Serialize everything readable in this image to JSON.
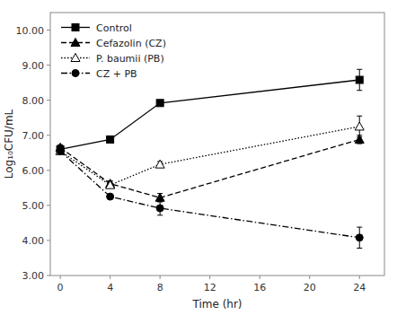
{
  "chart_data": {
    "type": "line",
    "x": [
      0,
      4,
      8,
      24
    ],
    "xlabel": "Time (hr)",
    "ylabel": "Log₁₀CFU/mL",
    "xlim": [
      -0.8,
      26
    ],
    "ylim": [
      3.0,
      10.5
    ],
    "xticks": [
      0,
      4,
      8,
      12,
      16,
      20,
      24
    ],
    "yticks": [
      {
        "value": 3.0,
        "label": "3.00"
      },
      {
        "value": 4.0,
        "label": "4.00"
      },
      {
        "value": 5.0,
        "label": "5.00"
      },
      {
        "value": 6.0,
        "label": "6.00"
      },
      {
        "value": 7.0,
        "label": "7.00"
      },
      {
        "value": 8.0,
        "label": "8.00"
      },
      {
        "value": 9.0,
        "label": "9.00"
      },
      {
        "value": 10.0,
        "label": "10.00"
      }
    ],
    "grid": false,
    "legend": "upper left",
    "series": [
      {
        "name": "Control",
        "color": "black",
        "marker": "square",
        "line_style": "solid",
        "values": [
          6.6,
          6.88,
          7.92,
          8.58
        ],
        "errors": [
          0.08,
          0.08,
          0.08,
          0.3
        ]
      },
      {
        "name": "Cefazolin (CZ)",
        "color": "black",
        "marker": "triangle",
        "line_style": "dashed",
        "values": [
          6.65,
          5.62,
          5.22,
          6.88
        ],
        "errors": [
          0.08,
          0.08,
          0.12,
          0.12
        ]
      },
      {
        "name": "P. baumii (PB)",
        "color": "black",
        "marker": "triangle-open",
        "line_style": "dotted",
        "values": [
          6.55,
          5.58,
          6.17,
          7.25
        ],
        "errors": [
          0.08,
          0.08,
          0.08,
          0.3
        ]
      },
      {
        "name": "CZ + PB",
        "color": "black",
        "marker": "circle",
        "line_style": "dashdot",
        "values": [
          6.55,
          5.25,
          4.92,
          4.08
        ],
        "errors": [
          0.08,
          0.05,
          0.2,
          0.3
        ]
      }
    ]
  }
}
